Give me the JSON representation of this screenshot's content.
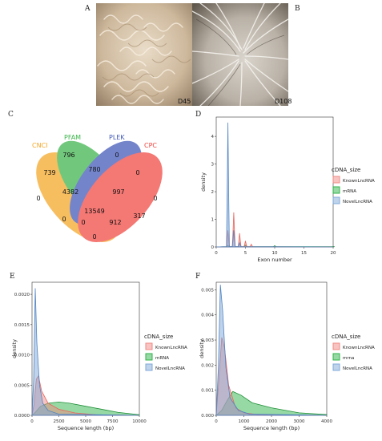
{
  "panel_letters": {
    "A": "A",
    "B": "B",
    "C": "C",
    "D": "D",
    "E": "E",
    "F": "F"
  },
  "photos": {
    "A": {
      "label": "D45"
    },
    "B": {
      "label": "D108"
    }
  },
  "venn": {
    "sets": [
      {
        "name": "CNCI",
        "color": "#f5a623"
      },
      {
        "name": "PFAM",
        "color": "#3bb44a"
      },
      {
        "name": "PLEK",
        "color": "#3e56b8"
      },
      {
        "name": "CPC",
        "color": "#f0453f"
      }
    ],
    "counts": [
      "796",
      "0",
      "739",
      "780",
      "0",
      "0",
      "4382",
      "997",
      "0",
      "13549",
      "317",
      "0",
      "0",
      "912",
      "0"
    ]
  },
  "legend": {
    "title": "cDNA_size",
    "items": [
      {
        "label": "KnownLncRNA",
        "color": "#f08a84"
      },
      {
        "label": "mRNA",
        "color": "#2fb34a"
      },
      {
        "label": "NovelLncRNA",
        "color": "#7fa8d8"
      }
    ],
    "items_F": [
      "KnownLncRNA",
      "mrna",
      "NovelLncRNA"
    ]
  },
  "chart_data": [
    {
      "panel": "D",
      "type": "area",
      "xlabel": "Exon number",
      "ylabel": "density",
      "xlim": [
        0,
        20
      ],
      "ylim": [
        0,
        4.7
      ],
      "xticks": [
        "0",
        "5",
        "10",
        "15",
        "20"
      ],
      "yticks": [
        "0",
        "1",
        "2",
        "3",
        "4"
      ],
      "series": [
        {
          "name": "KnownLncRNA",
          "peaks": [
            [
              2,
              0.6
            ],
            [
              3,
              1.25
            ],
            [
              4,
              0.5
            ],
            [
              5,
              0.22
            ],
            [
              6,
              0.1
            ]
          ]
        },
        {
          "name": "mRNA",
          "peaks": [
            [
              2,
              0.06
            ],
            [
              5,
              0.07
            ],
            [
              10,
              0.05
            ],
            [
              20,
              0.02
            ]
          ]
        },
        {
          "name": "NovelLncRNA",
          "peaks": [
            [
              2,
              4.5
            ],
            [
              3,
              0.6
            ],
            [
              4,
              0.15
            ]
          ]
        }
      ]
    },
    {
      "panel": "E",
      "type": "area",
      "xlabel": "Sequence length (bp)",
      "ylabel": "density",
      "xlim": [
        0,
        10000
      ],
      "ylim": [
        0,
        0.0022
      ],
      "xticks": [
        "0",
        "2500",
        "5000",
        "7500",
        "10000"
      ],
      "yticks": [
        "0.0000",
        "0.0005",
        "0.0010",
        "0.0015",
        "0.0020"
      ],
      "series": [
        {
          "name": "KnownLncRNA",
          "points": [
            [
              0,
              0
            ],
            [
              200,
              0.0002
            ],
            [
              400,
              0.0006
            ],
            [
              600,
              0.00065
            ],
            [
              900,
              0.0004
            ],
            [
              1500,
              0.0002
            ],
            [
              2500,
              0.0001
            ],
            [
              4000,
              4e-05
            ],
            [
              6000,
              1e-05
            ],
            [
              10000,
              0
            ]
          ]
        },
        {
          "name": "mRNA",
          "points": [
            [
              0,
              0
            ],
            [
              300,
              5e-05
            ],
            [
              800,
              0.00015
            ],
            [
              1500,
              0.0002
            ],
            [
              2500,
              0.00022
            ],
            [
              3500,
              0.0002
            ],
            [
              5000,
              0.00015
            ],
            [
              6500,
              0.0001
            ],
            [
              8000,
              5e-05
            ],
            [
              10000,
              1e-05
            ]
          ]
        },
        {
          "name": "NovelLncRNA",
          "points": [
            [
              0,
              0
            ],
            [
              150,
              0.0006
            ],
            [
              300,
              0.0021
            ],
            [
              450,
              0.0012
            ],
            [
              700,
              0.0005
            ],
            [
              1000,
              0.0002
            ],
            [
              1500,
              8e-05
            ],
            [
              2500,
              2e-05
            ],
            [
              10000,
              0
            ]
          ]
        }
      ]
    },
    {
      "panel": "F",
      "type": "area",
      "xlabel": "Sequence length (bp)",
      "ylabel": "density",
      "xlim": [
        0,
        4000
      ],
      "ylim": [
        0,
        0.0053
      ],
      "xticks": [
        "0",
        "1000",
        "2000",
        "3000",
        "4000"
      ],
      "yticks": [
        "0.000",
        "0.001",
        "0.002",
        "0.003",
        "0.004",
        "0.005"
      ],
      "series": [
        {
          "name": "KnownLncRNA",
          "points": [
            [
              0,
              0
            ],
            [
              100,
              0.0015
            ],
            [
              200,
              0.0031
            ],
            [
              300,
              0.0027
            ],
            [
              450,
              0.0012
            ],
            [
              700,
              0.0003
            ],
            [
              1000,
              0.0001
            ],
            [
              1500,
              3e-05
            ],
            [
              4000,
              0
            ]
          ]
        },
        {
          "name": "mrna",
          "points": [
            [
              0,
              0
            ],
            [
              200,
              0.0002
            ],
            [
              400,
              0.0006
            ],
            [
              600,
              0.00095
            ],
            [
              900,
              0.0008
            ],
            [
              1300,
              0.0005
            ],
            [
              2000,
              0.0003
            ],
            [
              3000,
              0.0001
            ],
            [
              4000,
              3e-05
            ]
          ]
        },
        {
          "name": "NovelLncRNA",
          "points": [
            [
              0,
              0
            ],
            [
              80,
              0.002
            ],
            [
              150,
              0.0052
            ],
            [
              230,
              0.0042
            ],
            [
              350,
              0.0019
            ],
            [
              500,
              0.0007
            ],
            [
              800,
              0.0002
            ],
            [
              1200,
              5e-05
            ],
            [
              4000,
              0
            ]
          ]
        }
      ]
    }
  ]
}
